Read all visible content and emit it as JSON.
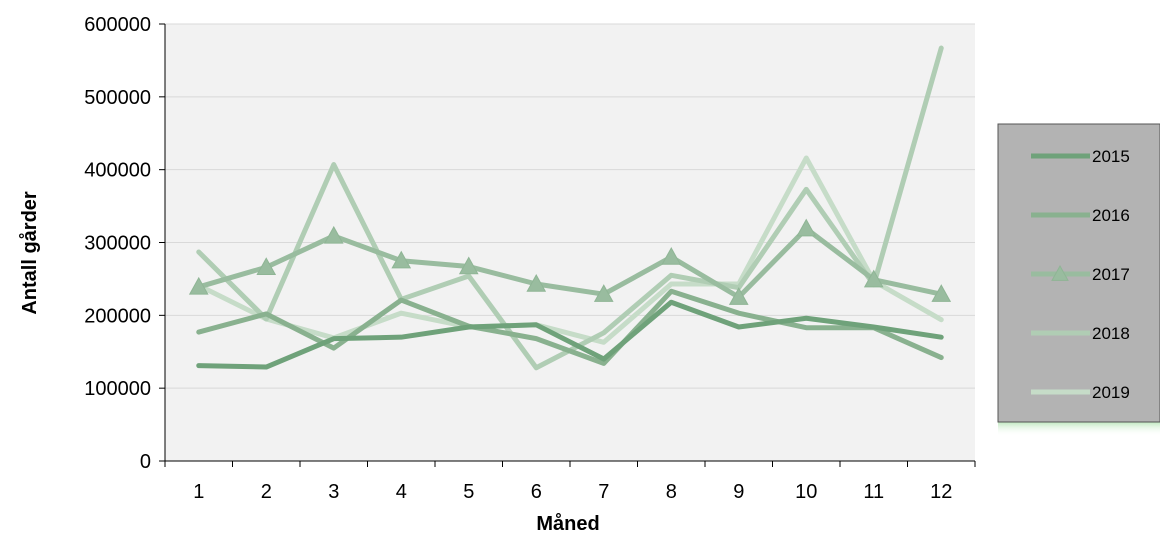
{
  "chart_data": {
    "type": "line",
    "xlabel": "Måned",
    "ylabel": "Antall gårder",
    "categories": [
      "1",
      "2",
      "3",
      "4",
      "5",
      "6",
      "7",
      "8",
      "9",
      "10",
      "11",
      "12"
    ],
    "ylim": [
      0,
      600000
    ],
    "yticks": [
      0,
      100000,
      200000,
      300000,
      400000,
      500000,
      600000
    ],
    "grid": true,
    "legend_position": "right",
    "series": [
      {
        "name": "2015",
        "color": "#6fa27a",
        "marker": "none",
        "values": [
          131000,
          129000,
          168000,
          170000,
          184000,
          187000,
          140000,
          218000,
          184000,
          196000,
          184000,
          170000
        ]
      },
      {
        "name": "2016",
        "color": "#89b18f",
        "marker": "none",
        "values": [
          177000,
          202000,
          155000,
          221000,
          185000,
          168000,
          134000,
          233000,
          203000,
          183000,
          183000,
          142000
        ]
      },
      {
        "name": "2017",
        "color": "#99bc9f",
        "marker": "triangle",
        "values": [
          239000,
          266000,
          309000,
          275000,
          267000,
          243000,
          229000,
          280000,
          225000,
          319000,
          249000,
          229000
        ]
      },
      {
        "name": "2018",
        "color": "#b0cdb4",
        "marker": "none",
        "values": [
          287000,
          195000,
          407000,
          222000,
          254000,
          128000,
          176000,
          255000,
          238000,
          373000,
          242000,
          567000
        ]
      },
      {
        "name": "2019",
        "color": "#c6dcc8",
        "marker": "none",
        "values": [
          241000,
          195000,
          169000,
          203000,
          184000,
          187000,
          163000,
          243000,
          243000,
          416000,
          247000,
          194000
        ]
      }
    ]
  }
}
